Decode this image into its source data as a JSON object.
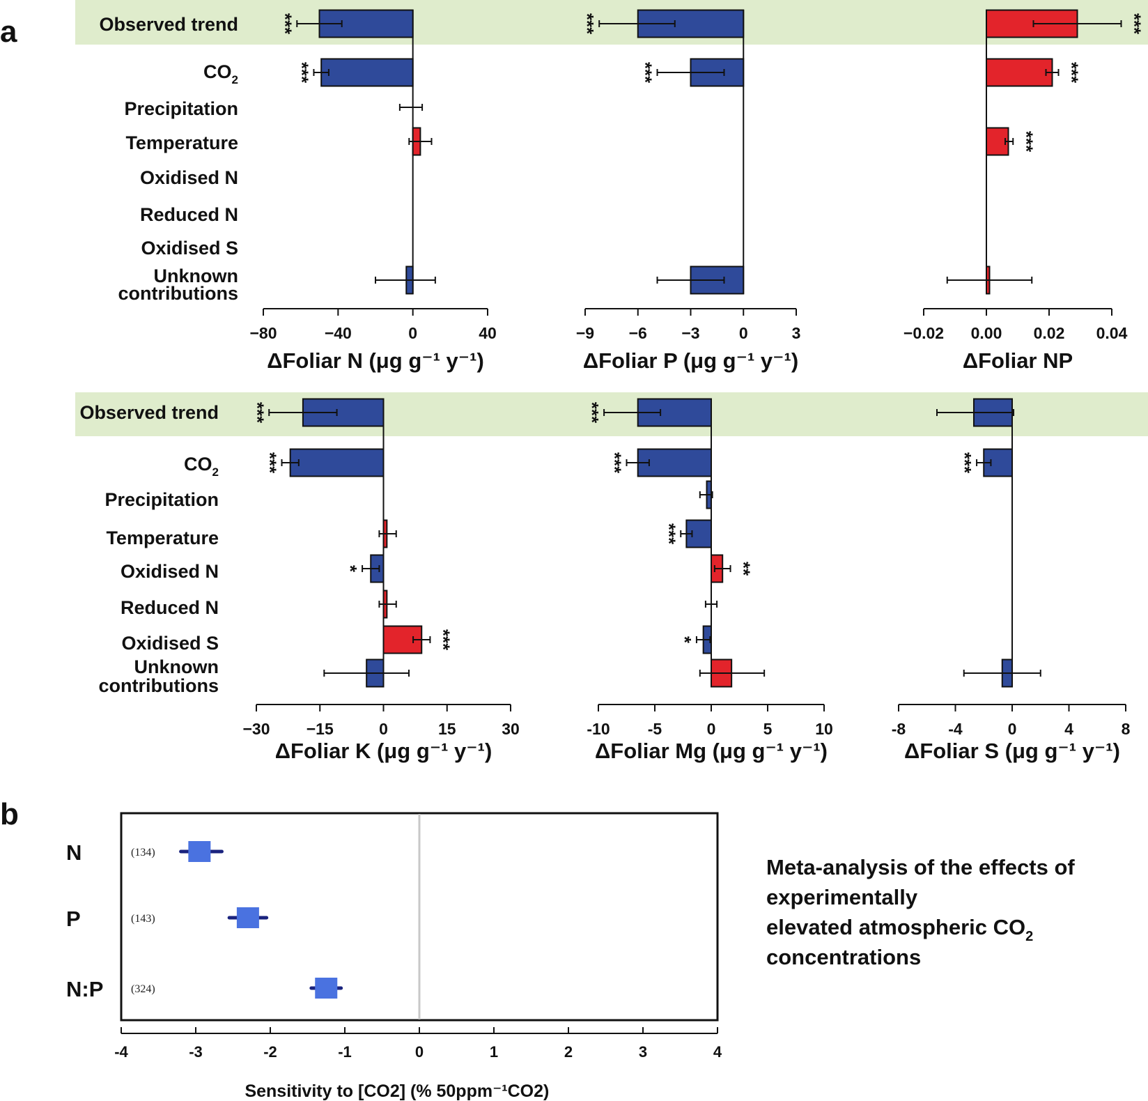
{
  "panel_a_label": "a",
  "panel_b_label": "b",
  "colors": {
    "increase": "#e3242b",
    "decrease": "#2f4a9a",
    "observed_band": "#dfeccc",
    "meta_point": "#4a72e0",
    "meta_ci": "#1a237e"
  },
  "rows": [
    "Observed trend",
    "CO2",
    "Precipitation",
    "Temperature",
    "Oxidised N",
    "Reduced N",
    "Oxidised S",
    "Unknown contributions"
  ],
  "chart_data": [
    {
      "type": "bar",
      "orientation": "horizontal",
      "panel": "a-1",
      "xlabel": "ΔFoliar N (μg g⁻¹ y⁻¹)",
      "xlim": [
        -80,
        40
      ],
      "xticks": [
        "−80",
        "−40",
        "0",
        "40"
      ],
      "xtick_values": [
        -80,
        -40,
        0,
        40
      ],
      "categories": [
        "Observed trend",
        "CO2",
        "Precipitation",
        "Temperature",
        "Oxidised N",
        "Reduced N",
        "Oxidised S",
        "Unknown contributions"
      ],
      "values": [
        -50,
        -49,
        0,
        4,
        0,
        0,
        0,
        -3.5
      ],
      "ci": [
        [
          -62,
          -38
        ],
        [
          -53,
          -45
        ],
        [
          -7,
          5
        ],
        [
          -2,
          10
        ],
        [
          0,
          0
        ],
        [
          0,
          0
        ],
        [
          0,
          0
        ],
        [
          -20,
          12
        ]
      ],
      "significance": [
        "***",
        "***",
        "",
        "",
        "",
        "",
        "",
        ""
      ]
    },
    {
      "type": "bar",
      "orientation": "horizontal",
      "panel": "a-2",
      "xlabel": "ΔFoliar P (μg g⁻¹ y⁻¹)",
      "xlim": [
        -9,
        3
      ],
      "xticks": [
        "−9",
        "−6",
        "−3",
        "0",
        "3"
      ],
      "xtick_values": [
        -9,
        -6,
        -3,
        0,
        3
      ],
      "categories": [
        "Observed trend",
        "CO2",
        "Precipitation",
        "Temperature",
        "Oxidised N",
        "Reduced N",
        "Oxidised S",
        "Unknown contributions"
      ],
      "values": [
        -6,
        -3,
        0,
        0,
        0,
        0,
        0,
        -3
      ],
      "ci": [
        [
          -8.2,
          -3.9
        ],
        [
          -4.9,
          -1.1
        ],
        [
          0,
          0
        ],
        [
          0,
          0
        ],
        [
          0,
          0
        ],
        [
          0,
          0
        ],
        [
          0,
          0
        ],
        [
          -4.9,
          -1.1
        ]
      ],
      "significance": [
        "***",
        "***",
        "",
        "",
        "",
        "",
        "",
        ""
      ]
    },
    {
      "type": "bar",
      "orientation": "horizontal",
      "panel": "a-3",
      "xlabel": "ΔFoliar NP",
      "xlim": [
        -0.02,
        0.04
      ],
      "xticks": [
        "−0.02",
        "0.00",
        "0.02",
        "0.04"
      ],
      "xtick_values": [
        -0.02,
        0,
        0.02,
        0.04
      ],
      "categories": [
        "Observed trend",
        "CO2",
        "Precipitation",
        "Temperature",
        "Oxidised N",
        "Reduced N",
        "Oxidised S",
        "Unknown contributions"
      ],
      "values": [
        0.029,
        0.021,
        0,
        0.007,
        0,
        0,
        0,
        0.001
      ],
      "ci": [
        [
          0.015,
          0.043
        ],
        [
          0.019,
          0.023
        ],
        [
          0,
          0
        ],
        [
          0.006,
          0.0085
        ],
        [
          0,
          0
        ],
        [
          0,
          0
        ],
        [
          0,
          0
        ],
        [
          -0.0125,
          0.0145
        ]
      ],
      "significance": [
        "***",
        "***",
        "",
        "***",
        "",
        "",
        "",
        ""
      ]
    },
    {
      "type": "bar",
      "orientation": "horizontal",
      "panel": "a-4",
      "xlabel": "ΔFoliar K (μg g⁻¹ y⁻¹)",
      "xlim": [
        -30,
        30
      ],
      "xticks": [
        "−30",
        "−15",
        "0",
        "15",
        "30"
      ],
      "xtick_values": [
        -30,
        -15,
        0,
        15,
        30
      ],
      "categories": [
        "Observed trend",
        "CO2",
        "Precipitation",
        "Temperature",
        "Oxidised N",
        "Reduced N",
        "Oxidised S",
        "Unknown contributions"
      ],
      "values": [
        -19,
        -22,
        0,
        0.8,
        -3,
        0.8,
        9,
        -4
      ],
      "ci": [
        [
          -27,
          -11
        ],
        [
          -24,
          -20
        ],
        [
          0,
          0
        ],
        [
          -1,
          3
        ],
        [
          -5,
          -1
        ],
        [
          -1,
          3
        ],
        [
          7,
          11
        ],
        [
          -14,
          6
        ]
      ],
      "significance": [
        "***",
        "***",
        "",
        "",
        "*",
        "",
        "***",
        ""
      ]
    },
    {
      "type": "bar",
      "orientation": "horizontal",
      "panel": "a-5",
      "xlabel": "ΔFoliar Mg (μg g⁻¹ y⁻¹)",
      "xlim": [
        -10,
        10
      ],
      "xticks": [
        "-10",
        "-5",
        "0",
        "5",
        "10"
      ],
      "xtick_values": [
        -10,
        -5,
        0,
        5,
        10
      ],
      "categories": [
        "Observed trend",
        "CO2",
        "Precipitation",
        "Temperature",
        "Oxidised N",
        "Reduced N",
        "Oxidised S",
        "Unknown contributions"
      ],
      "values": [
        -6.5,
        -6.5,
        -0.4,
        -2.2,
        1,
        0,
        -0.7,
        1.8
      ],
      "ci": [
        [
          -9.5,
          -4.5
        ],
        [
          -7.5,
          -5.5
        ],
        [
          -1,
          0.1
        ],
        [
          -2.7,
          -1.7
        ],
        [
          0.3,
          1.7
        ],
        [
          -0.5,
          0.5
        ],
        [
          -1.3,
          -0.1
        ],
        [
          -1,
          4.7
        ]
      ],
      "significance": [
        "***",
        "***",
        "",
        "***",
        "**",
        "",
        "*",
        ""
      ]
    },
    {
      "type": "bar",
      "orientation": "horizontal",
      "panel": "a-6",
      "xlabel": "ΔFoliar S (μg g⁻¹ y⁻¹)",
      "xlim": [
        -8,
        8
      ],
      "xticks": [
        "-8",
        "-4",
        "0",
        "4",
        "8"
      ],
      "xtick_values": [
        -8,
        -4,
        0,
        4,
        8
      ],
      "categories": [
        "Observed trend",
        "CO2",
        "Precipitation",
        "Temperature",
        "Oxidised N",
        "Reduced N",
        "Oxidised S",
        "Unknown contributions"
      ],
      "values": [
        -2.7,
        -2,
        0,
        0,
        0,
        0,
        0,
        -0.7
      ],
      "ci": [
        [
          -5.3,
          0.1
        ],
        [
          -2.5,
          -1.5
        ],
        [
          0,
          0
        ],
        [
          0,
          0
        ],
        [
          0,
          0
        ],
        [
          0,
          0
        ],
        [
          0,
          0
        ],
        [
          -3.4,
          2
        ]
      ],
      "significance": [
        "",
        "***",
        "",
        "",
        "",
        "",
        "",
        ""
      ]
    },
    {
      "type": "scatter",
      "panel": "b",
      "title": "",
      "xlabel": "Sensitivity to [CO2] (% 50ppm⁻¹CO2)",
      "xlim": [
        -4,
        4
      ],
      "xticks": [
        "-4",
        "-3",
        "-2",
        "-1",
        "0",
        "1",
        "2",
        "3",
        "4"
      ],
      "xtick_values": [
        -4,
        -3,
        -2,
        -1,
        0,
        1,
        2,
        3,
        4
      ],
      "categories": [
        "N",
        "P",
        "N:P"
      ],
      "counts": [
        "(134)",
        "(143)",
        "(324)"
      ],
      "values": [
        -2.95,
        -2.3,
        -1.25
      ],
      "ci": [
        [
          -3.2,
          -2.65
        ],
        [
          -2.55,
          -2.05
        ],
        [
          -1.45,
          -1.05
        ]
      ]
    }
  ],
  "annotation": {
    "line1": "Meta-analysis of the effects of",
    "line2": "experimentally",
    "line3": "elevated atmospheric CO",
    "line3_sub": "2",
    "line4": "concentrations"
  }
}
